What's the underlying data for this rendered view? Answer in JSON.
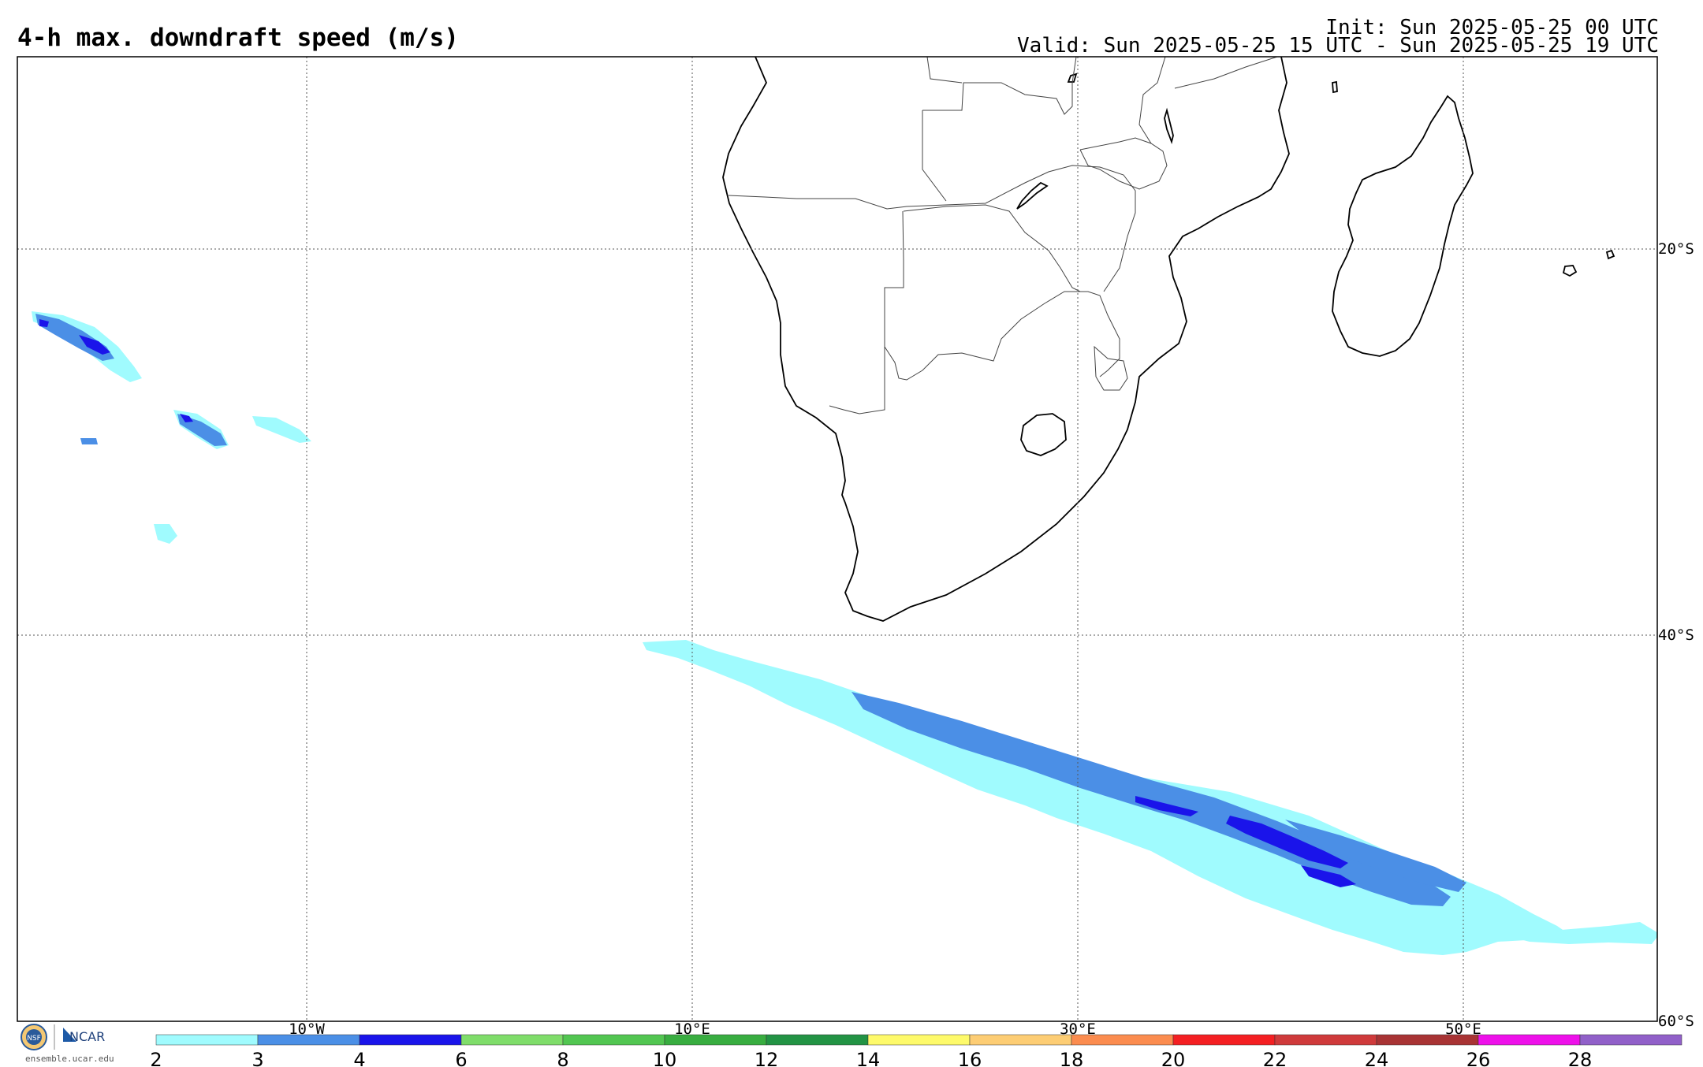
{
  "header": {
    "title": "4-h max. downdraft speed (m/s)",
    "init": "Init: Sun 2025-05-25 00 UTC",
    "valid": "Valid: Sun 2025-05-25 15 UTC - Sun 2025-05-25 19 UTC"
  },
  "axes": {
    "lon_labels": [
      "10°W",
      "10°E",
      "30°E",
      "50°E"
    ],
    "lat_labels": [
      "20°S",
      "40°S",
      "60°S"
    ]
  },
  "colorbar": {
    "ticks": [
      "2",
      "3",
      "4",
      "6",
      "8",
      "10",
      "12",
      "14",
      "16",
      "18",
      "20",
      "22",
      "24",
      "26",
      "28"
    ],
    "colors": [
      "#a0fbfe",
      "#4b8fe6",
      "#1a14ea",
      "#7fdd6a",
      "#52c651",
      "#38ad40",
      "#229344",
      "#fefa6a",
      "#fdcd74",
      "#fb8c4f",
      "#f41f22",
      "#cf3a3b",
      "#a83334",
      "#ee10ea",
      "#9160c9"
    ]
  },
  "logos": {
    "nsf_icon": "nsf-logo-icon",
    "ncar_text": "NCAR",
    "site": "ensemble.ucar.edu"
  }
}
